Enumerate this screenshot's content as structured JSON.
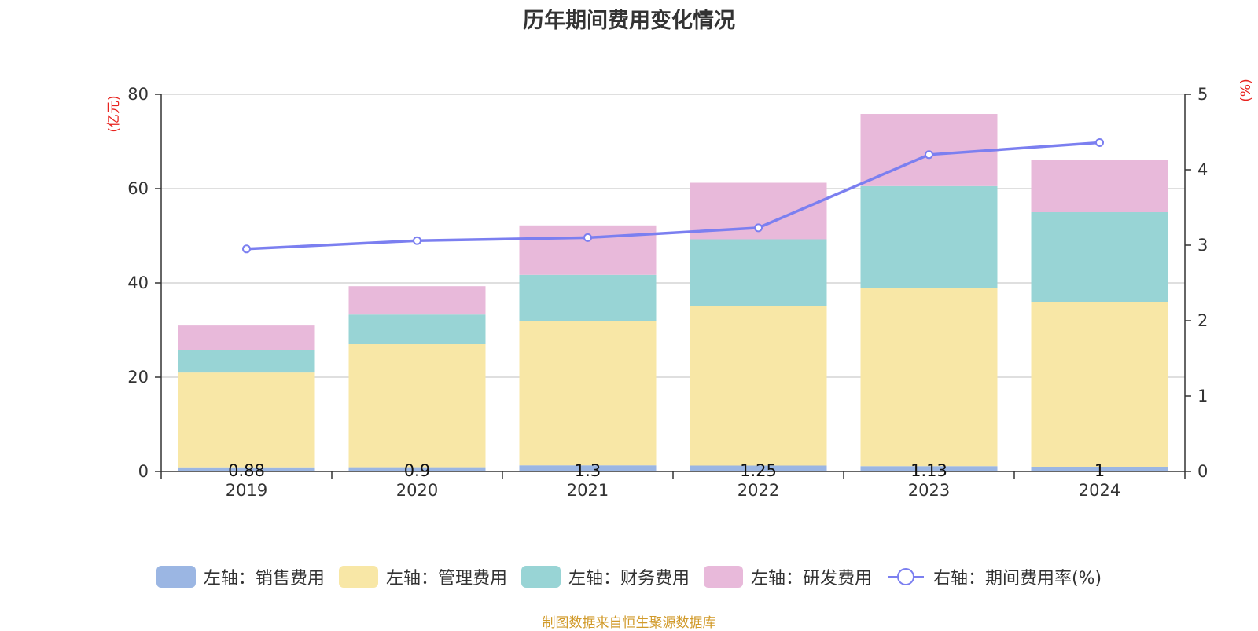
{
  "chart_data": {
    "type": "bar",
    "stacked": true,
    "title": "历年期间费用变化情况",
    "categories": [
      "2019",
      "2020",
      "2021",
      "2022",
      "2023",
      "2024"
    ],
    "left_axis": {
      "unit": "(亿元)",
      "ylim": [
        0,
        80
      ],
      "ticks": [
        "0",
        "20",
        "40",
        "60",
        "80"
      ]
    },
    "right_axis": {
      "unit": "(%)",
      "ylim": [
        0,
        5
      ],
      "ticks": [
        "0",
        "1",
        "2",
        "3",
        "4",
        "5"
      ]
    },
    "grid": true,
    "legend_position": "bottom",
    "series": [
      {
        "name": "左轴：销售费用",
        "type": "bar",
        "axis": "left",
        "color": "#9bb6e3",
        "values": [
          0.88,
          0.9,
          1.3,
          1.25,
          1.13,
          1.0
        ],
        "labels": [
          "0.88",
          "0.9",
          "1.3",
          "1.25",
          "1.13",
          "1"
        ]
      },
      {
        "name": "左轴：管理费用",
        "type": "bar",
        "axis": "left",
        "color": "#f8e7a6",
        "values": [
          20.1,
          26.1,
          30.7,
          33.8,
          37.8,
          35.0
        ]
      },
      {
        "name": "左轴：财务费用",
        "type": "bar",
        "axis": "left",
        "color": "#98d4d5",
        "values": [
          4.8,
          6.3,
          9.7,
          14.2,
          21.6,
          19.0
        ]
      },
      {
        "name": "左轴：研发费用",
        "type": "bar",
        "axis": "left",
        "color": "#e8b9da",
        "values": [
          5.2,
          6.0,
          10.5,
          12.0,
          15.3,
          11.0
        ]
      },
      {
        "name": "右轴：期间费用率(%)",
        "type": "line",
        "axis": "right",
        "color": "#7b7ff0",
        "values": [
          2.95,
          3.06,
          3.1,
          3.23,
          4.2,
          4.36
        ]
      }
    ]
  },
  "source_note": "制图数据来自恒生聚源数据库"
}
